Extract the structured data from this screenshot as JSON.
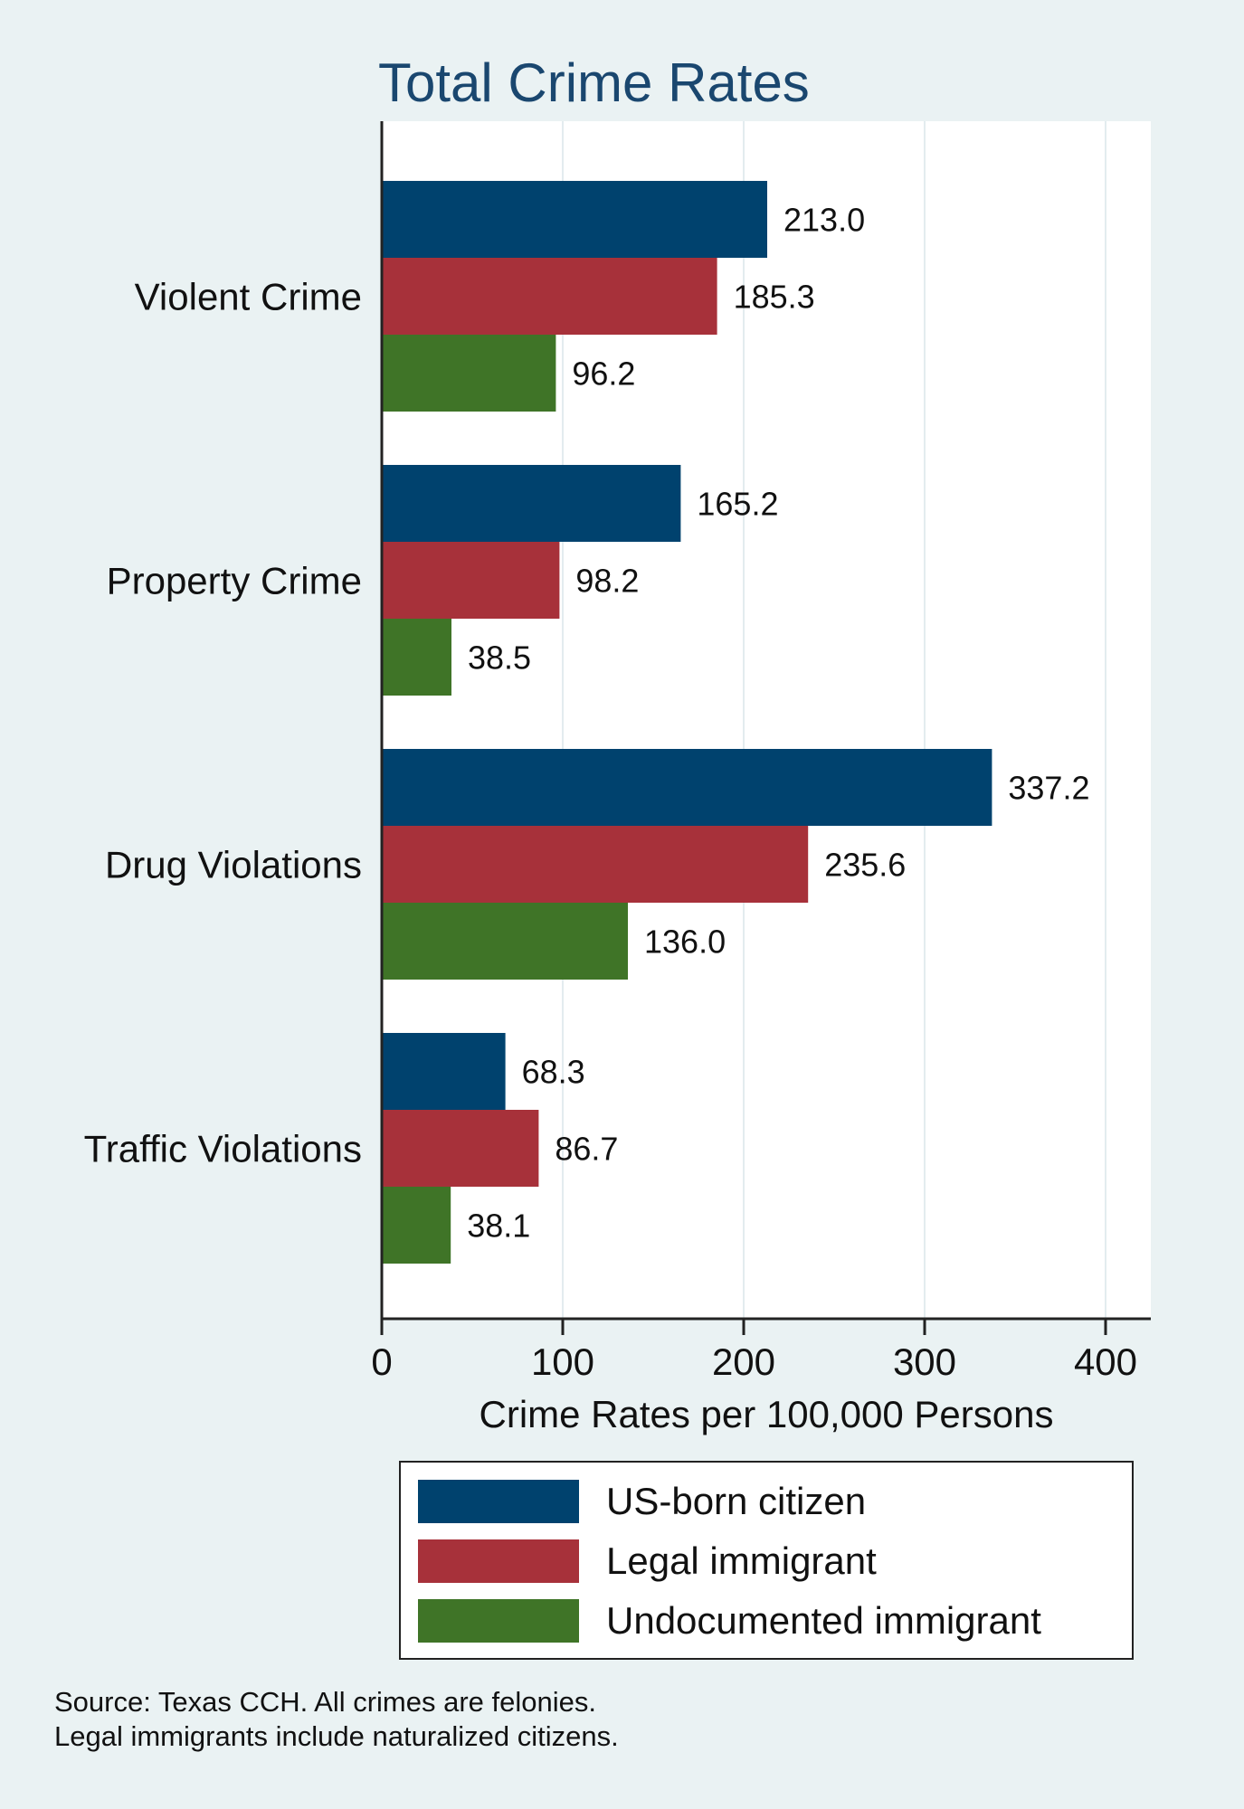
{
  "chart_data": {
    "type": "bar",
    "orientation": "horizontal",
    "title": "Total Crime Rates",
    "categories": [
      "Violent Crime",
      "Property Crime",
      "Drug Violations",
      "Traffic Violations"
    ],
    "series": [
      {
        "name": "US-born citizen",
        "color": "#00426e",
        "values": [
          213.0,
          165.2,
          337.2,
          68.3
        ],
        "labels": [
          "213.0",
          "165.2",
          "337.2",
          "68.3"
        ]
      },
      {
        "name": "Legal immigrant",
        "color": "#a7313a",
        "values": [
          185.3,
          98.2,
          235.6,
          86.7
        ],
        "labels": [
          "185.3",
          "98.2",
          "235.6",
          "86.7"
        ]
      },
      {
        "name": "Undocumented immigrant",
        "color": "#3f7427",
        "values": [
          96.2,
          38.5,
          136.0,
          38.1
        ],
        "labels": [
          "96.2",
          "38.5",
          "136.0",
          "38.1"
        ]
      }
    ],
    "xlabel": "Crime Rates per 100,000 Persons",
    "xlim": [
      0,
      425
    ],
    "xticks": [
      0,
      100,
      200,
      300,
      400
    ],
    "xtick_labels": [
      "0",
      "100",
      "200",
      "300",
      "400"
    ],
    "grid": true,
    "legend_position": "bottom",
    "notes": [
      "Source: Texas CCH. All crimes are felonies.",
      "Legal immigrants include naturalized citizens."
    ]
  }
}
